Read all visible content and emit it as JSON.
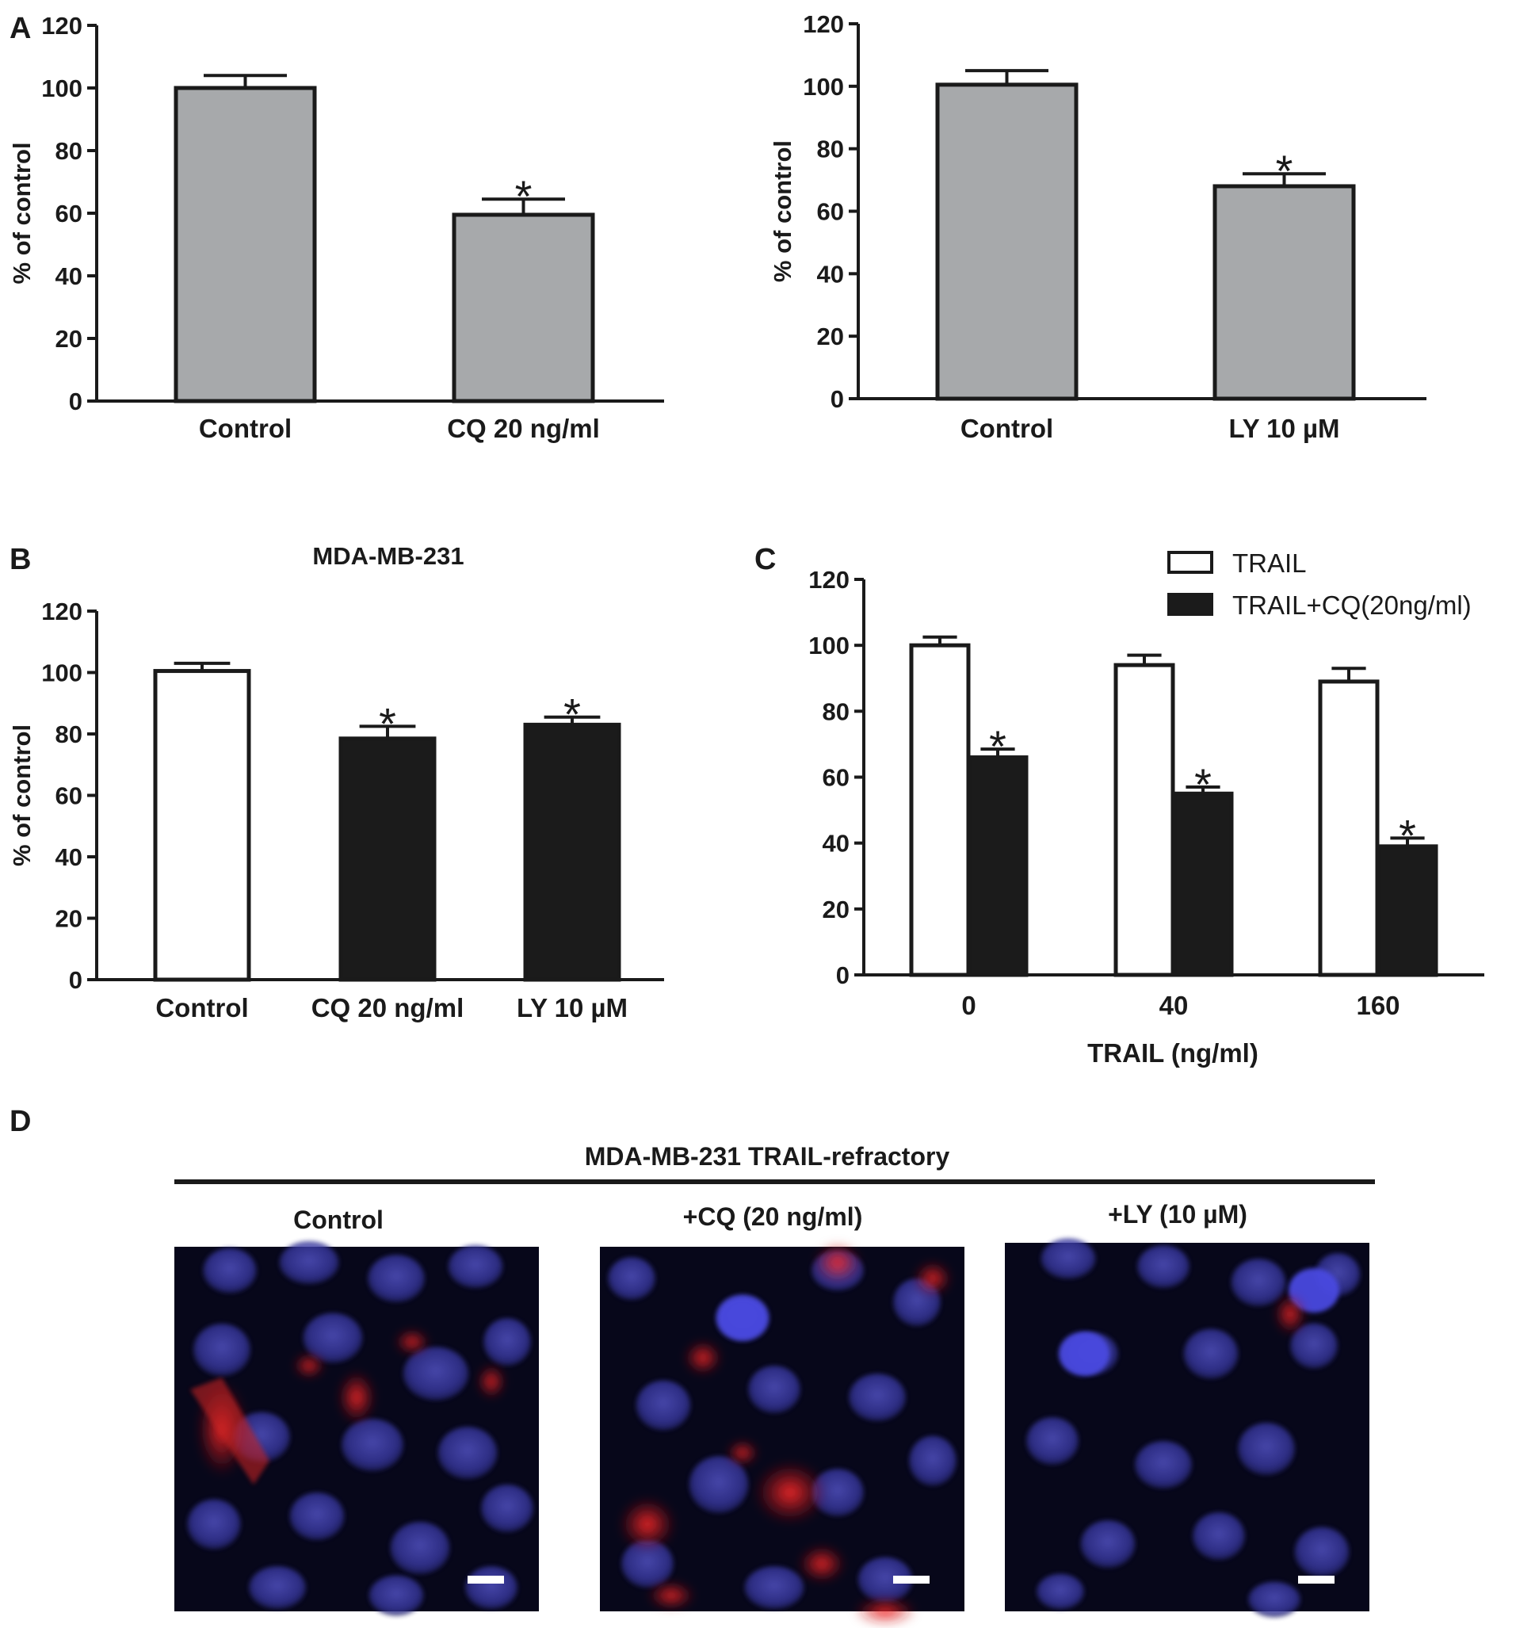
{
  "panels": {
    "a": "A",
    "b": "B",
    "c": "C",
    "d": "D"
  },
  "colors": {
    "gray_bar": "#a7a9ab",
    "black_bar": "#1b1b1b",
    "white_bar": "#ffffff",
    "axis": "#1a1a1a",
    "nucleus": "#3c3ca6",
    "lysosome": "#d01c1c"
  },
  "chart_data": [
    {
      "id": "A1",
      "type": "bar",
      "ylabel": "% of control",
      "ylim": [
        0,
        120
      ],
      "yticks": [
        0,
        20,
        40,
        60,
        80,
        100,
        120
      ],
      "categories": [
        "Control",
        "CQ 20 ng/ml"
      ],
      "values": [
        100,
        59.5
      ],
      "errors": [
        4,
        5
      ],
      "significance": [
        "",
        "*"
      ],
      "bar_fill": "gray"
    },
    {
      "id": "A2",
      "type": "bar",
      "ylabel": "% of control",
      "ylim": [
        0,
        120
      ],
      "yticks": [
        0,
        20,
        40,
        60,
        80,
        100,
        120
      ],
      "categories": [
        "Control",
        "LY 10 µM"
      ],
      "values": [
        100.5,
        68
      ],
      "errors": [
        4.5,
        4
      ],
      "significance": [
        "",
        "*"
      ],
      "bar_fill": "gray"
    },
    {
      "id": "B",
      "type": "bar",
      "title": "MDA-MB-231",
      "ylabel": "% of control",
      "ylim": [
        0,
        120
      ],
      "yticks": [
        0,
        20,
        40,
        60,
        80,
        100,
        120
      ],
      "categories": [
        "Control",
        "CQ 20 ng/ml",
        "LY 10 µM"
      ],
      "values": [
        100.5,
        78.5,
        83
      ],
      "errors": [
        2.5,
        4,
        2.5
      ],
      "significance": [
        "",
        "*",
        "*"
      ],
      "bar_fills": [
        "white",
        "black",
        "black"
      ]
    },
    {
      "id": "C",
      "type": "bar",
      "xlabel": "TRAIL (ng/ml)",
      "ylim": [
        0,
        120
      ],
      "yticks": [
        0,
        20,
        40,
        60,
        80,
        100,
        120
      ],
      "categories": [
        "0",
        "40",
        "160"
      ],
      "legend_position": "top-right",
      "series": [
        {
          "name": "TRAIL",
          "fill": "white",
          "values": [
            100,
            94,
            89
          ],
          "errors": [
            2.5,
            3,
            4
          ],
          "significance": [
            "",
            "",
            ""
          ]
        },
        {
          "name": "TRAIL+CQ(20ng/ml)",
          "fill": "black",
          "values": [
            66,
            55,
            39
          ],
          "errors": [
            2.5,
            2,
            2.5
          ],
          "significance": [
            "*",
            "*",
            "*"
          ]
        }
      ]
    }
  ],
  "panel_d": {
    "title": "MDA-MB-231 TRAIL-refractory",
    "images": [
      {
        "label": "Control"
      },
      {
        "label": "+CQ (20 ng/ml)"
      },
      {
        "label": "+LY (10 µM)"
      }
    ]
  }
}
